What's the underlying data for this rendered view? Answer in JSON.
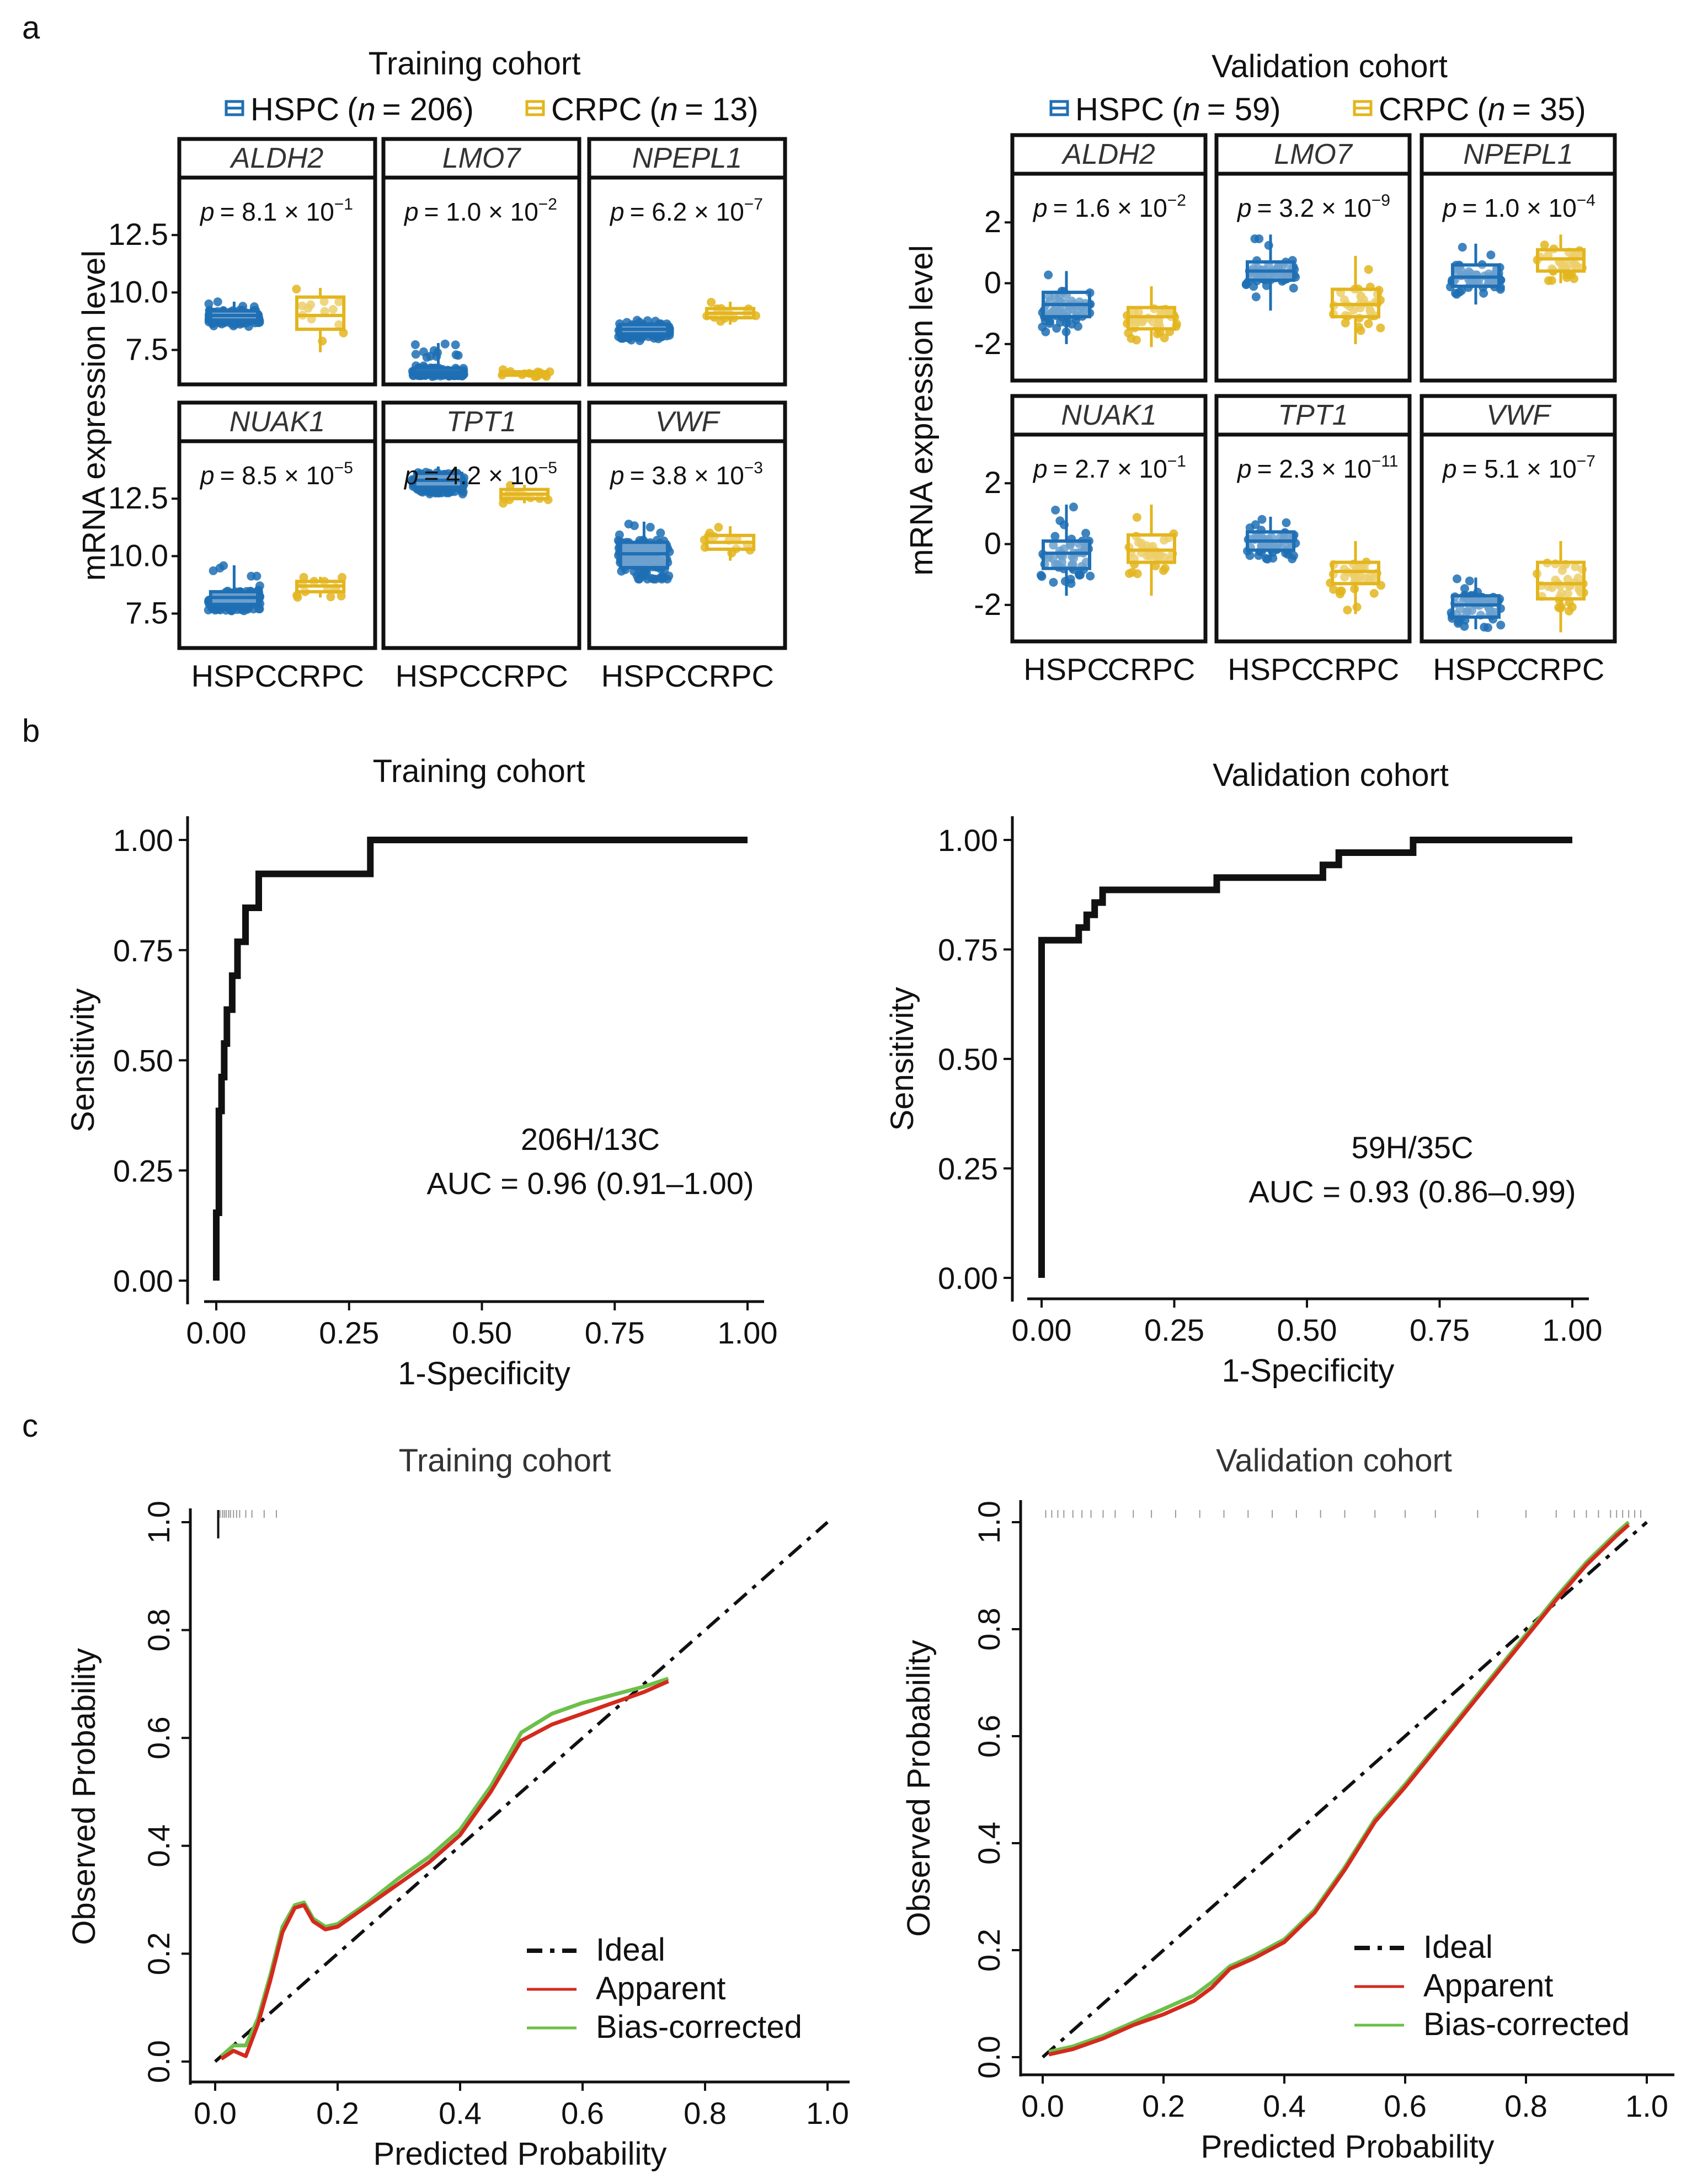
{
  "colors": {
    "hspc": "#1f6fb4",
    "crpc": "#e3b51e",
    "apparent": "#d42a1e",
    "bias": "#6cc04a",
    "ideal": "#111111",
    "rug": "#9a9a9a"
  },
  "panel_labels": {
    "a": "a",
    "b": "b",
    "c": "c"
  },
  "chart_data": [
    {
      "id": "a-train",
      "type": "box",
      "title": "Training cohort",
      "legend": [
        {
          "key": "hspc",
          "name": "HSPC",
          "n_prefix": "(",
          "n_label": "n",
          "n_value": "= 206)"
        },
        {
          "key": "crpc",
          "name": "CRPC",
          "n_prefix": "(",
          "n_label": "n",
          "n_value": "= 13)"
        }
      ],
      "ylabel": "mRNA expression level",
      "yticks": [
        7.5,
        10.0,
        12.5
      ],
      "ylim": [
        6.0,
        15.0
      ],
      "categories": [
        "HSPC",
        "CRPC"
      ],
      "panels": [
        {
          "gene": "ALDH2",
          "p": {
            "prefix": "= 8.1 × 10",
            "exp": "−1"
          },
          "box": {
            "hspc": [
              8.5,
              8.8,
              9.0,
              9.2,
              9.6,
              9.0
            ],
            "crpc": [
              7.4,
              8.4,
              9.3,
              9.8,
              10.2,
              9.0
            ]
          }
        },
        {
          "gene": "LMO7",
          "p": {
            "prefix": "= 1.0 × 10",
            "exp": "−2"
          },
          "box": {
            "hspc": [
              6.3,
              6.45,
              6.55,
              6.7,
              7.8,
              6.55
            ],
            "crpc": [
              6.3,
              6.4,
              6.48,
              6.55,
              6.65,
              6.48
            ]
          }
        },
        {
          "gene": "NPEPL1",
          "p": {
            "prefix": "= 6.2 × 10",
            "exp": "−7"
          },
          "box": {
            "hspc": [
              7.9,
              8.2,
              8.4,
              8.6,
              8.8,
              8.4
            ],
            "crpc": [
              8.6,
              8.9,
              9.1,
              9.3,
              9.6,
              9.1
            ]
          }
        },
        {
          "gene": "NUAK1",
          "p": {
            "prefix": "= 8.5 × 10",
            "exp": "−5"
          },
          "box": {
            "hspc": [
              7.5,
              7.9,
              8.2,
              8.45,
              9.6,
              8.2
            ],
            "crpc": [
              8.2,
              8.45,
              8.7,
              8.9,
              9.1,
              8.7
            ]
          }
        },
        {
          "gene": "TPT1",
          "p": {
            "prefix": "= 4.2 × 10",
            "exp": "−5"
          },
          "box": {
            "hspc": [
              12.6,
              13.0,
              13.3,
              13.6,
              13.9,
              13.3
            ],
            "crpc": [
              12.3,
              12.5,
              12.7,
              12.9,
              13.1,
              12.7
            ]
          }
        },
        {
          "gene": "VWF",
          "p": {
            "prefix": "= 3.8 × 10",
            "exp": "−3"
          },
          "box": {
            "hspc": [
              9.0,
              9.5,
              10.1,
              10.6,
              11.5,
              10.1
            ],
            "crpc": [
              9.8,
              10.3,
              10.6,
              10.9,
              11.3,
              10.6
            ]
          }
        }
      ]
    },
    {
      "id": "a-valid",
      "type": "box",
      "title": "Validation cohort",
      "legend": [
        {
          "key": "hspc",
          "name": "HSPC",
          "n_prefix": "(",
          "n_label": "n",
          "n_value": "= 59)"
        },
        {
          "key": "crpc",
          "name": "CRPC",
          "n_prefix": "(",
          "n_label": "n",
          "n_value": "= 35)"
        }
      ],
      "ylabel": "mRNA expression level",
      "yticks": [
        -2,
        0,
        2
      ],
      "ylim": [
        -3.2,
        3.6
      ],
      "categories": [
        "HSPC",
        "CRPC"
      ],
      "panels": [
        {
          "gene": "ALDH2",
          "p": {
            "prefix": "= 1.6 × 10",
            "exp": "−2"
          },
          "box": {
            "hspc": [
              -2.0,
              -1.1,
              -0.7,
              -0.3,
              0.4,
              -0.7
            ],
            "crpc": [
              -2.1,
              -1.5,
              -1.1,
              -0.8,
              -0.1,
              -1.1
            ]
          }
        },
        {
          "gene": "LMO7",
          "p": {
            "prefix": "= 3.2 × 10",
            "exp": "−9"
          },
          "box": {
            "hspc": [
              -0.9,
              0.1,
              0.4,
              0.7,
              1.6,
              0.4
            ],
            "crpc": [
              -2.0,
              -1.1,
              -0.7,
              -0.2,
              0.9,
              -0.7
            ]
          }
        },
        {
          "gene": "NPEPL1",
          "p": {
            "prefix": "= 1.0 × 10",
            "exp": "−4"
          },
          "box": {
            "hspc": [
              -0.7,
              -0.1,
              0.2,
              0.6,
              1.3,
              0.2
            ],
            "crpc": [
              0.0,
              0.4,
              0.8,
              1.1,
              1.6,
              0.8
            ]
          }
        },
        {
          "gene": "NUAK1",
          "p": {
            "prefix": "= 2.7 × 10",
            "exp": "−1"
          },
          "box": {
            "hspc": [
              -1.7,
              -0.8,
              -0.3,
              0.1,
              1.3,
              -0.3
            ],
            "crpc": [
              -1.7,
              -0.6,
              -0.2,
              0.3,
              1.3,
              -0.2
            ]
          }
        },
        {
          "gene": "TPT1",
          "p": {
            "prefix": "= 2.3 × 10",
            "exp": "−11"
          },
          "box": {
            "hspc": [
              -0.5,
              -0.2,
              0.1,
              0.4,
              0.9,
              0.1
            ],
            "crpc": [
              -2.3,
              -1.3,
              -0.9,
              -0.6,
              0.1,
              -0.9
            ]
          }
        },
        {
          "gene": "VWF",
          "p": {
            "prefix": "= 5.1 × 10",
            "exp": "−7"
          },
          "box": {
            "hspc": [
              -2.8,
              -2.4,
              -2.0,
              -1.7,
              -1.1,
              -2.0
            ],
            "crpc": [
              -2.9,
              -1.8,
              -1.3,
              -0.6,
              0.1,
              -1.3
            ]
          }
        }
      ]
    },
    {
      "id": "b-train",
      "type": "line",
      "title": "Training cohort",
      "xlabel": "1-Specificity",
      "ylabel": "Sensitivity",
      "xlim": [
        0,
        1
      ],
      "ylim": [
        0,
        1
      ],
      "xticks": [
        "0.00",
        "0.25",
        "0.50",
        "0.75",
        "1.00"
      ],
      "yticks": [
        "0.00",
        "0.25",
        "0.50",
        "0.75",
        "1.00"
      ],
      "annotation": [
        "206H/13C",
        "AUC = 0.96 (0.91–1.00)"
      ],
      "x": [
        0,
        0,
        0.005,
        0.005,
        0.01,
        0.01,
        0.015,
        0.015,
        0.02,
        0.02,
        0.03,
        0.03,
        0.04,
        0.04,
        0.055,
        0.055,
        0.08,
        0.08,
        0.29,
        0.29,
        1.0
      ],
      "y": [
        0,
        0.154,
        0.154,
        0.385,
        0.385,
        0.462,
        0.462,
        0.538,
        0.538,
        0.615,
        0.615,
        0.692,
        0.692,
        0.769,
        0.769,
        0.846,
        0.846,
        0.923,
        0.923,
        1.0,
        1.0
      ]
    },
    {
      "id": "b-valid",
      "type": "line",
      "title": "Validation cohort",
      "xlabel": "1-Specificity",
      "ylabel": "Sensitivity",
      "xlim": [
        0,
        1
      ],
      "ylim": [
        0,
        1
      ],
      "xticks": [
        "0.00",
        "0.25",
        "0.50",
        "0.75",
        "1.00"
      ],
      "yticks": [
        "0.00",
        "0.25",
        "0.50",
        "0.75",
        "1.00"
      ],
      "annotation": [
        "59H/35C",
        "AUC = 0.93 (0.86–0.99)"
      ],
      "x": [
        0,
        0,
        0.07,
        0.07,
        0.085,
        0.085,
        0.1,
        0.1,
        0.115,
        0.115,
        0.14,
        0.14,
        0.33,
        0.33,
        0.53,
        0.53,
        0.56,
        0.56,
        0.7,
        0.7,
        1.0
      ],
      "y": [
        0,
        0.771,
        0.771,
        0.8,
        0.8,
        0.829,
        0.829,
        0.857,
        0.857,
        0.886,
        0.886,
        0.886,
        0.886,
        0.914,
        0.914,
        0.943,
        0.943,
        0.971,
        0.971,
        1.0,
        1.0
      ]
    },
    {
      "id": "c-train",
      "type": "line",
      "title": "Training cohort",
      "xlabel": "Predicted Probability",
      "ylabel": "Observed Probability",
      "xlim": [
        0,
        1
      ],
      "ylim": [
        0,
        1
      ],
      "xticks": [
        "0.0",
        "0.2",
        "0.4",
        "0.6",
        "0.8",
        "1.0"
      ],
      "yticks": [
        "0.0",
        "0.2",
        "0.4",
        "0.6",
        "0.8",
        "1.0"
      ],
      "legend": [
        "Ideal",
        "Apparent",
        "Bias-corrected"
      ],
      "rug": [
        0.005,
        0.008,
        0.012,
        0.015,
        0.018,
        0.022,
        0.025,
        0.03,
        0.035,
        0.04,
        0.05,
        0.06,
        0.08,
        0.1
      ],
      "rug_tall": [
        0.005
      ],
      "series": [
        {
          "name": "Apparent",
          "x": [
            0.01,
            0.03,
            0.05,
            0.07,
            0.09,
            0.11,
            0.13,
            0.145,
            0.16,
            0.18,
            0.2,
            0.25,
            0.3,
            0.35,
            0.4,
            0.45,
            0.5,
            0.55,
            0.6,
            0.65,
            0.7,
            0.74
          ],
          "y": [
            0.005,
            0.02,
            0.01,
            0.07,
            0.15,
            0.24,
            0.285,
            0.29,
            0.26,
            0.245,
            0.25,
            0.29,
            0.33,
            0.37,
            0.42,
            0.5,
            0.595,
            0.625,
            0.645,
            0.665,
            0.685,
            0.705
          ]
        },
        {
          "name": "Bias-corrected",
          "x": [
            0.01,
            0.03,
            0.05,
            0.07,
            0.09,
            0.11,
            0.13,
            0.145,
            0.16,
            0.18,
            0.2,
            0.25,
            0.3,
            0.35,
            0.4,
            0.45,
            0.5,
            0.55,
            0.6,
            0.65,
            0.7,
            0.74
          ],
          "y": [
            0.01,
            0.03,
            0.03,
            0.08,
            0.16,
            0.25,
            0.29,
            0.295,
            0.265,
            0.25,
            0.255,
            0.295,
            0.34,
            0.38,
            0.43,
            0.51,
            0.61,
            0.645,
            0.665,
            0.68,
            0.695,
            0.71
          ]
        }
      ]
    },
    {
      "id": "c-valid",
      "type": "line",
      "title": "Validation cohort",
      "xlabel": "Predicted Probability",
      "ylabel": "Observed Probability",
      "xlim": [
        0,
        1
      ],
      "ylim": [
        0,
        1
      ],
      "xticks": [
        "0.0",
        "0.2",
        "0.4",
        "0.6",
        "0.8",
        "1.0"
      ],
      "yticks": [
        "0.0",
        "0.2",
        "0.4",
        "0.6",
        "0.8",
        "1.0"
      ],
      "legend": [
        "Ideal",
        "Apparent",
        "Bias-corrected"
      ],
      "rug": [
        0.005,
        0.015,
        0.025,
        0.035,
        0.05,
        0.065,
        0.08,
        0.1,
        0.12,
        0.15,
        0.18,
        0.22,
        0.26,
        0.3,
        0.34,
        0.38,
        0.42,
        0.46,
        0.5,
        0.55,
        0.6,
        0.65,
        0.72,
        0.8,
        0.85,
        0.88,
        0.9,
        0.92,
        0.94,
        0.95,
        0.96,
        0.97,
        0.98,
        0.99
      ],
      "rug_tall": [],
      "series": [
        {
          "name": "Apparent",
          "x": [
            0.01,
            0.05,
            0.1,
            0.15,
            0.2,
            0.25,
            0.28,
            0.31,
            0.35,
            0.4,
            0.45,
            0.5,
            0.55,
            0.6,
            0.65,
            0.7,
            0.75,
            0.8,
            0.85,
            0.9,
            0.95,
            0.97
          ],
          "y": [
            0.005,
            0.015,
            0.035,
            0.06,
            0.08,
            0.105,
            0.13,
            0.165,
            0.185,
            0.215,
            0.27,
            0.35,
            0.44,
            0.505,
            0.575,
            0.645,
            0.715,
            0.785,
            0.855,
            0.92,
            0.975,
            0.995
          ]
        },
        {
          "name": "Bias-corrected",
          "x": [
            0.01,
            0.05,
            0.1,
            0.15,
            0.2,
            0.25,
            0.28,
            0.31,
            0.35,
            0.4,
            0.45,
            0.5,
            0.55,
            0.6,
            0.65,
            0.7,
            0.75,
            0.8,
            0.85,
            0.9,
            0.95,
            0.97
          ],
          "y": [
            0.01,
            0.02,
            0.04,
            0.065,
            0.09,
            0.115,
            0.14,
            0.17,
            0.19,
            0.22,
            0.275,
            0.355,
            0.445,
            0.51,
            0.58,
            0.65,
            0.72,
            0.79,
            0.86,
            0.925,
            0.98,
            1.0
          ]
        }
      ]
    }
  ]
}
